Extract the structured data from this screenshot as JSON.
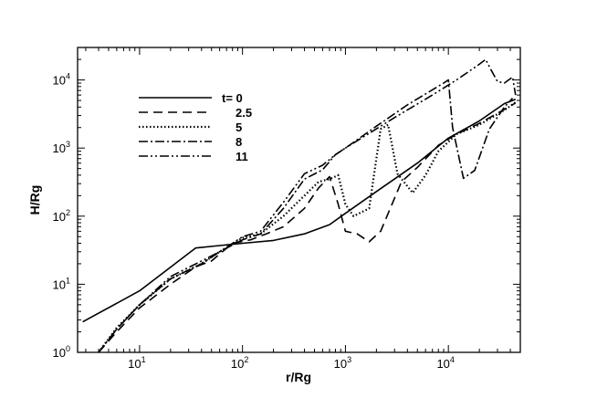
{
  "chart_data": {
    "type": "line",
    "xlabel": "r/Rg",
    "ylabel": "H/Rg",
    "xscale": "log",
    "yscale": "log",
    "xlim": [
      2.5,
      50000
    ],
    "ylim": [
      1,
      30000
    ],
    "x_ticks": [
      {
        "base": "10",
        "exp": "1",
        "value": 10
      },
      {
        "base": "10",
        "exp": "2",
        "value": 100
      },
      {
        "base": "10",
        "exp": "3",
        "value": 1000
      },
      {
        "base": "10",
        "exp": "4",
        "value": 10000
      }
    ],
    "y_ticks": [
      {
        "base": "10",
        "exp": "0",
        "value": 1
      },
      {
        "base": "10",
        "exp": "1",
        "value": 10
      },
      {
        "base": "10",
        "exp": "2",
        "value": 100
      },
      {
        "base": "10",
        "exp": "3",
        "value": 1000
      },
      {
        "base": "10",
        "exp": "4",
        "value": 10000
      }
    ],
    "legend_placement": "top-left",
    "legend_labels": [
      "t= 0",
      "2.5",
      "5",
      "8",
      "11"
    ],
    "series": [
      {
        "name": "t= 0",
        "style": "solid",
        "points": [
          [
            2.8,
            2.8
          ],
          [
            10,
            8
          ],
          [
            35,
            34
          ],
          [
            60,
            37
          ],
          [
            100,
            40
          ],
          [
            200,
            44
          ],
          [
            400,
            55
          ],
          [
            700,
            75
          ],
          [
            1000,
            110
          ],
          [
            2000,
            230
          ],
          [
            5000,
            600
          ],
          [
            10000,
            1400
          ],
          [
            20000,
            2500
          ],
          [
            35000,
            4500
          ],
          [
            45000,
            5200
          ]
        ]
      },
      {
        "name": "2.5",
        "style": "dashed",
        "points": [
          [
            4,
            1
          ],
          [
            6,
            2
          ],
          [
            10,
            4.5
          ],
          [
            20,
            10
          ],
          [
            35,
            18
          ],
          [
            50,
            22
          ],
          [
            80,
            40
          ],
          [
            120,
            45
          ],
          [
            170,
            55
          ],
          [
            250,
            70
          ],
          [
            400,
            130
          ],
          [
            550,
            260
          ],
          [
            700,
            380
          ],
          [
            850,
            150
          ],
          [
            1000,
            60
          ],
          [
            1300,
            55
          ],
          [
            1700,
            42
          ],
          [
            2200,
            60
          ],
          [
            3500,
            320
          ],
          [
            5000,
            520
          ],
          [
            8000,
            1100
          ],
          [
            12000,
            1600
          ],
          [
            20000,
            2300
          ],
          [
            35000,
            3700
          ],
          [
            45000,
            4600
          ]
        ]
      },
      {
        "name": "5",
        "style": "dotted",
        "points": [
          [
            4,
            1
          ],
          [
            6,
            2.3
          ],
          [
            10,
            5
          ],
          [
            20,
            12
          ],
          [
            40,
            20
          ],
          [
            60,
            30
          ],
          [
            100,
            48
          ],
          [
            150,
            55
          ],
          [
            250,
            100
          ],
          [
            400,
            200
          ],
          [
            550,
            320
          ],
          [
            700,
            350
          ],
          [
            850,
            400
          ],
          [
            1000,
            150
          ],
          [
            1200,
            100
          ],
          [
            1700,
            130
          ],
          [
            2200,
            1900
          ],
          [
            2600,
            2200
          ],
          [
            3200,
            420
          ],
          [
            4500,
            220
          ],
          [
            6000,
            400
          ],
          [
            8000,
            900
          ],
          [
            12000,
            1600
          ],
          [
            20000,
            2200
          ],
          [
            35000,
            3600
          ],
          [
            45000,
            4700
          ]
        ]
      },
      {
        "name": "8",
        "style": "dashdot",
        "points": [
          [
            4,
            1
          ],
          [
            6,
            2.2
          ],
          [
            10,
            5
          ],
          [
            20,
            12
          ],
          [
            40,
            20
          ],
          [
            60,
            30
          ],
          [
            100,
            45
          ],
          [
            150,
            55
          ],
          [
            250,
            130
          ],
          [
            400,
            350
          ],
          [
            600,
            480
          ],
          [
            800,
            800
          ],
          [
            1000,
            1000
          ],
          [
            2000,
            2100
          ],
          [
            4000,
            4300
          ],
          [
            9000,
            9000
          ],
          [
            10000,
            10000
          ],
          [
            11000,
            2000
          ],
          [
            14000,
            360
          ],
          [
            18000,
            470
          ],
          [
            25000,
            1900
          ],
          [
            35000,
            4000
          ],
          [
            42000,
            5400
          ]
        ]
      },
      {
        "name": "11",
        "style": "dashdotdot",
        "points": [
          [
            4,
            1
          ],
          [
            6,
            2.2
          ],
          [
            10,
            5
          ],
          [
            20,
            13
          ],
          [
            40,
            22
          ],
          [
            60,
            30
          ],
          [
            100,
            50
          ],
          [
            150,
            60
          ],
          [
            250,
            160
          ],
          [
            400,
            420
          ],
          [
            600,
            560
          ],
          [
            800,
            800
          ],
          [
            1000,
            1000
          ],
          [
            3000,
            2800
          ],
          [
            7000,
            6000
          ],
          [
            12000,
            10000
          ],
          [
            20000,
            17000
          ],
          [
            23000,
            20000
          ],
          [
            26000,
            14000
          ],
          [
            30000,
            9500
          ],
          [
            35000,
            9000
          ],
          [
            42000,
            11000
          ],
          [
            45000,
            6000
          ]
        ]
      }
    ]
  }
}
